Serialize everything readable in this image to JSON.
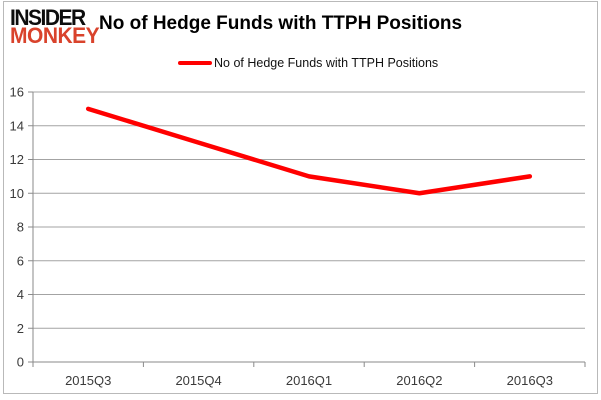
{
  "branding": {
    "logo_line1": "INSIDER",
    "logo_line2": "MONKEY"
  },
  "header": {
    "title": "No of Hedge Funds with TTPH Positions"
  },
  "legend": {
    "label": "No of Hedge Funds with TTPH Positions"
  },
  "chart_data": {
    "type": "line",
    "title": "No of Hedge Funds with TTPH Positions",
    "categories": [
      "2015Q3",
      "2015Q4",
      "2016Q1",
      "2016Q2",
      "2016Q3"
    ],
    "series": [
      {
        "name": "No of Hedge Funds with TTPH Positions",
        "color": "#ff0000",
        "values": [
          15,
          13,
          11,
          10,
          11
        ]
      }
    ],
    "ylim": [
      0,
      16
    ],
    "yticks": [
      0,
      2,
      4,
      6,
      8,
      10,
      12,
      14,
      16
    ],
    "grid": true,
    "legend_position": "top",
    "xlabel": "",
    "ylabel": ""
  },
  "colors": {
    "logo_red": "#d9432c",
    "gridline": "#a3a3a3",
    "axis": "#8a8a8a",
    "tick_label": "#3a3a3a",
    "frame": "#b9b9b9"
  }
}
